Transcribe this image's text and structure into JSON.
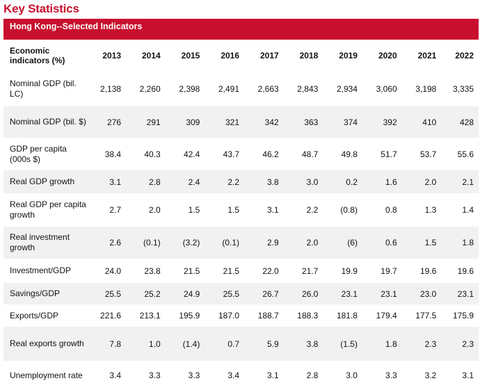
{
  "heading": "Key Statistics",
  "banner": "Hong Kong--Selected Indicators",
  "header_label": "Economic indicators (%)",
  "years": [
    "2013",
    "2014",
    "2015",
    "2016",
    "2017",
    "2018",
    "2019",
    "2020",
    "2021",
    "2022"
  ],
  "rows": [
    {
      "label": "Nominal GDP (bil. LC)",
      "values": [
        "2,138",
        "2,260",
        "2,398",
        "2,491",
        "2,663",
        "2,843",
        "2,934",
        "3,060",
        "3,198",
        "3,335"
      ]
    },
    {
      "label": "Nominal GDP (bil. $)",
      "values": [
        "276",
        "291",
        "309",
        "321",
        "342",
        "363",
        "374",
        "392",
        "410",
        "428"
      ]
    },
    {
      "label": "GDP per capita (000s $)",
      "values": [
        "38.4",
        "40.3",
        "42.4",
        "43.7",
        "46.2",
        "48.7",
        "49.8",
        "51.7",
        "53.7",
        "55.6"
      ]
    },
    {
      "label": "Real GDP growth",
      "values": [
        "3.1",
        "2.8",
        "2.4",
        "2.2",
        "3.8",
        "3.0",
        "0.2",
        "1.6",
        "2.0",
        "2.1"
      ]
    },
    {
      "label": "Real GDP per capita growth",
      "values": [
        "2.7",
        "2.0",
        "1.5",
        "1.5",
        "3.1",
        "2.2",
        "(0.8)",
        "0.8",
        "1.3",
        "1.4"
      ]
    },
    {
      "label": "Real investment growth",
      "values": [
        "2.6",
        "(0.1)",
        "(3.2)",
        "(0.1)",
        "2.9",
        "2.0",
        "(6)",
        "0.6",
        "1.5",
        "1.8"
      ]
    },
    {
      "label": "Investment/GDP",
      "values": [
        "24.0",
        "23.8",
        "21.5",
        "21.5",
        "22.0",
        "21.7",
        "19.9",
        "19.7",
        "19.6",
        "19.6"
      ]
    },
    {
      "label": "Savings/GDP",
      "values": [
        "25.5",
        "25.2",
        "24.9",
        "25.5",
        "26.7",
        "26.0",
        "23.1",
        "23.1",
        "23.0",
        "23.1"
      ]
    },
    {
      "label": "Exports/GDP",
      "values": [
        "221.6",
        "213.1",
        "195.9",
        "187.0",
        "188.7",
        "188.3",
        "181.8",
        "179.4",
        "177.5",
        "175.9"
      ]
    },
    {
      "label": "Real exports growth",
      "values": [
        "7.8",
        "1.0",
        "(1.4)",
        "0.7",
        "5.9",
        "3.8",
        "(1.5)",
        "1.8",
        "2.3",
        "2.3"
      ]
    },
    {
      "label": "Unemployment rate",
      "values": [
        "3.4",
        "3.3",
        "3.3",
        "3.4",
        "3.1",
        "2.8",
        "3.0",
        "3.3",
        "3.2",
        "3.1"
      ]
    }
  ]
}
